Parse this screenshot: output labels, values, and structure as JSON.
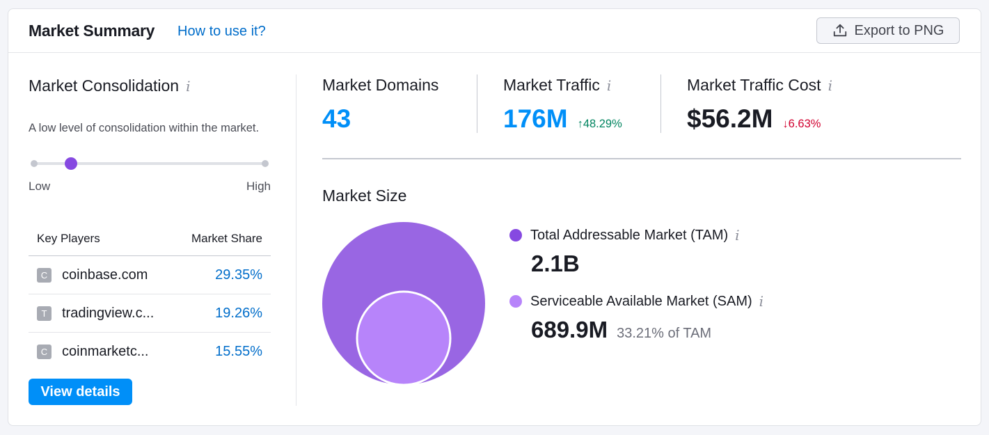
{
  "header": {
    "title": "Market Summary",
    "how_to": "How to use it?",
    "export_label": "Export to PNG",
    "export_icon": "upload-icon"
  },
  "consolidation": {
    "title": "Market Consolidation",
    "info": "i",
    "description": "A low level of consolidation within the market.",
    "level": 0.15,
    "low_label": "Low",
    "high_label": "High"
  },
  "key_players": {
    "col_players": "Key Players",
    "col_share": "Market Share",
    "rows": [
      {
        "initial": "C",
        "domain": "coinbase.com",
        "share": "29.35%"
      },
      {
        "initial": "T",
        "domain": "tradingview.c...",
        "share": "19.26%"
      },
      {
        "initial": "C",
        "domain": "coinmarketc...",
        "share": "15.55%"
      }
    ]
  },
  "view_details": "View details",
  "metrics": {
    "domains": {
      "label": "Market Domains",
      "value": "43",
      "color": "#008ff8"
    },
    "traffic": {
      "label": "Market Traffic",
      "info": "i",
      "value": "176M",
      "delta": "↑48.29%",
      "color": "#008ff8",
      "delta_color": "#00845f"
    },
    "cost": {
      "label": "Market Traffic Cost",
      "info": "i",
      "value": "$56.2M",
      "delta": "↓6.63%",
      "color": "#191b23",
      "delta_color": "#d1002f"
    }
  },
  "market_size": {
    "title": "Market Size",
    "tam": {
      "label": "Total Addressable Market (TAM)",
      "info": "i",
      "value": "2.1B",
      "color": "#8649e1"
    },
    "sam": {
      "label": "Serviceable Available Market (SAM)",
      "info": "i",
      "value": "689.9M",
      "pct": "33.21% of TAM",
      "color": "#b784fa"
    }
  }
}
